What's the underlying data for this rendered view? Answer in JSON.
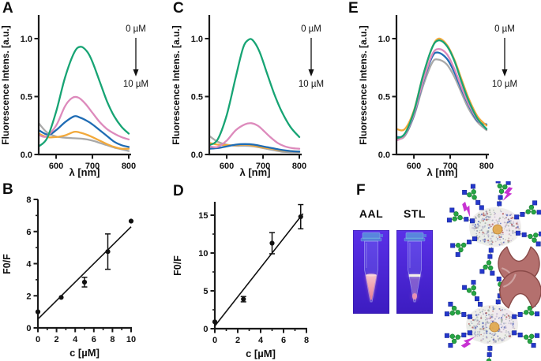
{
  "labels": {
    "A": "A",
    "B": "B",
    "C": "C",
    "D": "D",
    "E": "E",
    "F": "F"
  },
  "colors": {
    "series_green": "#17a474",
    "series_pink": "#dd8abc",
    "series_blue": "#1f6cb4",
    "series_orange": "#f2a93b",
    "series_gray": "#a9a9a9",
    "axis": "#1a1a1a",
    "glycan_circle": "#26a544",
    "glycan_square": "#2538cc",
    "bolt": "#c832d2",
    "lectin_body": "#b4706e",
    "lectin_edge": "#8a4a48",
    "photo_bg_top": "#5a30e8",
    "photo_bg_bottom": "#3c1cc0",
    "liquid_pink": "#ee8090"
  },
  "panels": {
    "F": {
      "tubes": [
        {
          "label": "AAL"
        },
        {
          "label": "STL"
        }
      ]
    }
  },
  "chart_data": [
    {
      "panel": "A",
      "type": "line",
      "xlabel": "λ [nm]",
      "ylabel": "Fluorescence Intens. [a.u.]",
      "xlim": [
        552,
        800
      ],
      "ylim": [
        0,
        1.2
      ],
      "xticks": [
        600,
        700,
        800
      ],
      "yticks": [
        0,
        0.5,
        1.0
      ],
      "ytick_labels": [
        "0.0",
        "0.5",
        "1.0"
      ],
      "annotation": {
        "top": "0 µM",
        "bottom": "10 µM"
      },
      "legend": "none",
      "grid": false,
      "series": [
        {
          "name": "10 µM",
          "color": "#a9a9a9",
          "points": [
            [
              552,
              0.27
            ],
            [
              575,
              0.19
            ],
            [
              600,
              0.155
            ],
            [
              625,
              0.145
            ],
            [
              650,
              0.14
            ],
            [
              675,
              0.135
            ],
            [
              700,
              0.12
            ],
            [
              720,
              0.1
            ],
            [
              740,
              0.08
            ],
            [
              760,
              0.06
            ],
            [
              780,
              0.045
            ],
            [
              800,
              0.03
            ]
          ]
        },
        {
          "name": "7.5 µM",
          "color": "#f2a93b",
          "points": [
            [
              552,
              0.18
            ],
            [
              575,
              0.15
            ],
            [
              600,
              0.15
            ],
            [
              625,
              0.165
            ],
            [
              650,
              0.195
            ],
            [
              665,
              0.19
            ],
            [
              685,
              0.17
            ],
            [
              700,
              0.15
            ],
            [
              720,
              0.12
            ],
            [
              740,
              0.09
            ],
            [
              760,
              0.065
            ],
            [
              780,
              0.05
            ],
            [
              800,
              0.05
            ]
          ]
        },
        {
          "name": "5 µM",
          "color": "#1f6cb4",
          "points": [
            [
              552,
              0.21
            ],
            [
              578,
              0.17
            ],
            [
              600,
              0.21
            ],
            [
              625,
              0.28
            ],
            [
              650,
              0.33
            ],
            [
              665,
              0.32
            ],
            [
              685,
              0.29
            ],
            [
              700,
              0.26
            ],
            [
              720,
              0.21
            ],
            [
              740,
              0.16
            ],
            [
              760,
              0.11
            ],
            [
              780,
              0.08
            ],
            [
              800,
              0.065
            ]
          ]
        },
        {
          "name": "2.5 µM",
          "color": "#dd8abc",
          "points": [
            [
              552,
              0.17
            ],
            [
              572,
              0.155
            ],
            [
              600,
              0.25
            ],
            [
              625,
              0.42
            ],
            [
              645,
              0.49
            ],
            [
              662,
              0.49
            ],
            [
              680,
              0.44
            ],
            [
              700,
              0.36
            ],
            [
              720,
              0.28
            ],
            [
              740,
              0.22
            ],
            [
              760,
              0.18
            ],
            [
              780,
              0.15
            ],
            [
              800,
              0.13
            ]
          ]
        },
        {
          "name": "0 µM",
          "color": "#17a474",
          "points": [
            [
              552,
              0.07
            ],
            [
              575,
              0.14
            ],
            [
              600,
              0.37
            ],
            [
              625,
              0.67
            ],
            [
              650,
              0.88
            ],
            [
              667,
              0.93
            ],
            [
              685,
              0.89
            ],
            [
              700,
              0.8
            ],
            [
              720,
              0.63
            ],
            [
              740,
              0.46
            ],
            [
              760,
              0.33
            ],
            [
              780,
              0.24
            ],
            [
              800,
              0.18
            ]
          ]
        }
      ]
    },
    {
      "panel": "B",
      "type": "scatter",
      "xlabel": "c [µM]",
      "ylabel": "F0/F",
      "xlim": [
        0,
        10
      ],
      "ylim": [
        0,
        8
      ],
      "xticks": [
        0,
        2,
        4,
        6,
        8,
        10
      ],
      "xminor": [
        1,
        3,
        5,
        7,
        9
      ],
      "yticks": [
        0,
        2,
        4,
        6,
        8
      ],
      "yminor": [
        1,
        3,
        5,
        7
      ],
      "points": [
        {
          "x": 0,
          "y": 1.0,
          "err": 0
        },
        {
          "x": 2.5,
          "y": 1.9,
          "err": 0
        },
        {
          "x": 5,
          "y": 2.85,
          "err": 0.3
        },
        {
          "x": 7.5,
          "y": 4.75,
          "err": 1.1
        },
        {
          "x": 10,
          "y": 6.65,
          "err": 0
        }
      ],
      "fit_line": {
        "x1": 0,
        "y1": 0.55,
        "x2": 10,
        "y2": 6.3
      },
      "marker_color": "#111111",
      "grid": false
    },
    {
      "panel": "C",
      "type": "line",
      "xlabel": "λ [nm]",
      "ylabel": "Fluorescence Intens. [a.u.]",
      "xlim": [
        552,
        800
      ],
      "ylim": [
        0,
        1.2
      ],
      "xticks": [
        600,
        700,
        800
      ],
      "yticks": [
        0,
        0.5,
        1.0
      ],
      "ytick_labels": [
        "0.0",
        "0.5",
        "1.0"
      ],
      "annotation": {
        "top": "0 µM",
        "bottom": "10 µM"
      },
      "legend": "none",
      "grid": false,
      "series": [
        {
          "name": "10 µM",
          "color": "#a9a9a9",
          "points": [
            [
              552,
              0.16
            ],
            [
              575,
              0.11
            ],
            [
              600,
              0.085
            ],
            [
              625,
              0.075
            ],
            [
              650,
              0.075
            ],
            [
              675,
              0.07
            ],
            [
              700,
              0.055
            ],
            [
              725,
              0.04
            ],
            [
              750,
              0.025
            ],
            [
              775,
              0.02
            ],
            [
              800,
              0.02
            ]
          ]
        },
        {
          "name": "7.5 µM",
          "color": "#f2a93b",
          "points": [
            [
              552,
              0.1
            ],
            [
              575,
              0.085
            ],
            [
              600,
              0.08
            ],
            [
              625,
              0.08
            ],
            [
              650,
              0.085
            ],
            [
              675,
              0.075
            ],
            [
              700,
              0.06
            ],
            [
              725,
              0.05
            ],
            [
              750,
              0.035
            ],
            [
              775,
              0.03
            ],
            [
              800,
              0.025
            ]
          ]
        },
        {
          "name": "5 µM",
          "color": "#1f6cb4",
          "points": [
            [
              552,
              0.05
            ],
            [
              575,
              0.055
            ],
            [
              600,
              0.07
            ],
            [
              625,
              0.085
            ],
            [
              650,
              0.09
            ],
            [
              675,
              0.085
            ],
            [
              700,
              0.07
            ],
            [
              725,
              0.055
            ],
            [
              750,
              0.04
            ],
            [
              775,
              0.03
            ],
            [
              800,
              0.025
            ]
          ]
        },
        {
          "name": "2.5 µM",
          "color": "#dd8abc",
          "points": [
            [
              552,
              0.07
            ],
            [
              575,
              0.065
            ],
            [
              600,
              0.12
            ],
            [
              625,
              0.21
            ],
            [
              650,
              0.26
            ],
            [
              668,
              0.27
            ],
            [
              685,
              0.25
            ],
            [
              700,
              0.21
            ],
            [
              720,
              0.15
            ],
            [
              740,
              0.1
            ],
            [
              760,
              0.07
            ],
            [
              780,
              0.055
            ],
            [
              800,
              0.05
            ]
          ]
        },
        {
          "name": "0 µM",
          "color": "#17a474",
          "points": [
            [
              552,
              0.08
            ],
            [
              575,
              0.13
            ],
            [
              600,
              0.34
            ],
            [
              625,
              0.67
            ],
            [
              645,
              0.92
            ],
            [
              660,
              0.99
            ],
            [
              672,
              0.985
            ],
            [
              690,
              0.89
            ],
            [
              710,
              0.71
            ],
            [
              730,
              0.53
            ],
            [
              750,
              0.38
            ],
            [
              775,
              0.24
            ],
            [
              800,
              0.15
            ]
          ]
        }
      ]
    },
    {
      "panel": "D",
      "type": "scatter",
      "xlabel": "c [µM]",
      "ylabel": "F0/F",
      "xlim": [
        0,
        8
      ],
      "ylim": [
        0,
        16.5
      ],
      "xticks": [
        0,
        2,
        4,
        6,
        8
      ],
      "xminor": [
        1,
        3,
        5,
        7
      ],
      "yticks": [
        0,
        5,
        10,
        15
      ],
      "yminor": [
        2.5,
        7.5,
        12.5
      ],
      "points": [
        {
          "x": 0,
          "y": 0.9,
          "err": 0
        },
        {
          "x": 2.5,
          "y": 3.9,
          "err": 0.35
        },
        {
          "x": 5,
          "y": 11.3,
          "err": 1.4
        },
        {
          "x": 7.5,
          "y": 14.8,
          "err": 1.6
        }
      ],
      "fit_line": {
        "x1": 0,
        "y1": 0.35,
        "x2": 7.7,
        "y2": 15.2
      },
      "marker_color": "#111111",
      "grid": false
    },
    {
      "panel": "E",
      "type": "line",
      "xlabel": "λ [nm]",
      "ylabel": "Fluorescence Intens. [a.u.]",
      "xlim": [
        552,
        800
      ],
      "ylim": [
        0,
        1.2
      ],
      "xticks": [
        600,
        700,
        800
      ],
      "yticks": [
        0,
        0.5,
        1.0
      ],
      "ytick_labels": [
        "0.0",
        "0.5",
        "1.0"
      ],
      "annotation": {
        "top": "0 µM",
        "bottom": "10 µM"
      },
      "legend": "none",
      "grid": false,
      "series": [
        {
          "name": "10 µM",
          "color": "#a9a9a9",
          "points": [
            [
              552,
              0.13
            ],
            [
              575,
              0.16
            ],
            [
              600,
              0.33
            ],
            [
              625,
              0.59
            ],
            [
              650,
              0.79
            ],
            [
              666,
              0.82
            ],
            [
              690,
              0.78
            ],
            [
              710,
              0.68
            ],
            [
              730,
              0.54
            ],
            [
              750,
              0.4
            ],
            [
              775,
              0.28
            ],
            [
              800,
              0.21
            ]
          ]
        },
        {
          "name": "5 µM",
          "color": "#1f6cb4",
          "points": [
            [
              552,
              0.15
            ],
            [
              575,
              0.17
            ],
            [
              600,
              0.34
            ],
            [
              625,
              0.62
            ],
            [
              650,
              0.84
            ],
            [
              666,
              0.88
            ],
            [
              690,
              0.83
            ],
            [
              710,
              0.72
            ],
            [
              730,
              0.57
            ],
            [
              750,
              0.43
            ],
            [
              775,
              0.29
            ],
            [
              800,
              0.26
            ]
          ]
        },
        {
          "name": "2.5 µM",
          "color": "#dd8abc",
          "points": [
            [
              552,
              0.12
            ],
            [
              575,
              0.17
            ],
            [
              600,
              0.35
            ],
            [
              625,
              0.63
            ],
            [
              650,
              0.86
            ],
            [
              668,
              0.91
            ],
            [
              690,
              0.87
            ],
            [
              710,
              0.75
            ],
            [
              730,
              0.59
            ],
            [
              750,
              0.44
            ],
            [
              775,
              0.3
            ],
            [
              800,
              0.22
            ]
          ]
        },
        {
          "name": "7.5 µM",
          "color": "#f2a93b",
          "points": [
            [
              552,
              0.22
            ],
            [
              575,
              0.22
            ],
            [
              600,
              0.38
            ],
            [
              625,
              0.68
            ],
            [
              650,
              0.92
            ],
            [
              668,
              1.0
            ],
            [
              690,
              0.95
            ],
            [
              710,
              0.83
            ],
            [
              730,
              0.66
            ],
            [
              750,
              0.49
            ],
            [
              775,
              0.33
            ],
            [
              800,
              0.25
            ]
          ]
        },
        {
          "name": "0 µM",
          "color": "#17a474",
          "points": [
            [
              552,
              0.14
            ],
            [
              575,
              0.18
            ],
            [
              600,
              0.37
            ],
            [
              625,
              0.68
            ],
            [
              650,
              0.92
            ],
            [
              668,
              0.985
            ],
            [
              690,
              0.94
            ],
            [
              710,
              0.82
            ],
            [
              730,
              0.64
            ],
            [
              750,
              0.47
            ],
            [
              775,
              0.31
            ],
            [
              800,
              0.22
            ]
          ]
        }
      ]
    }
  ]
}
